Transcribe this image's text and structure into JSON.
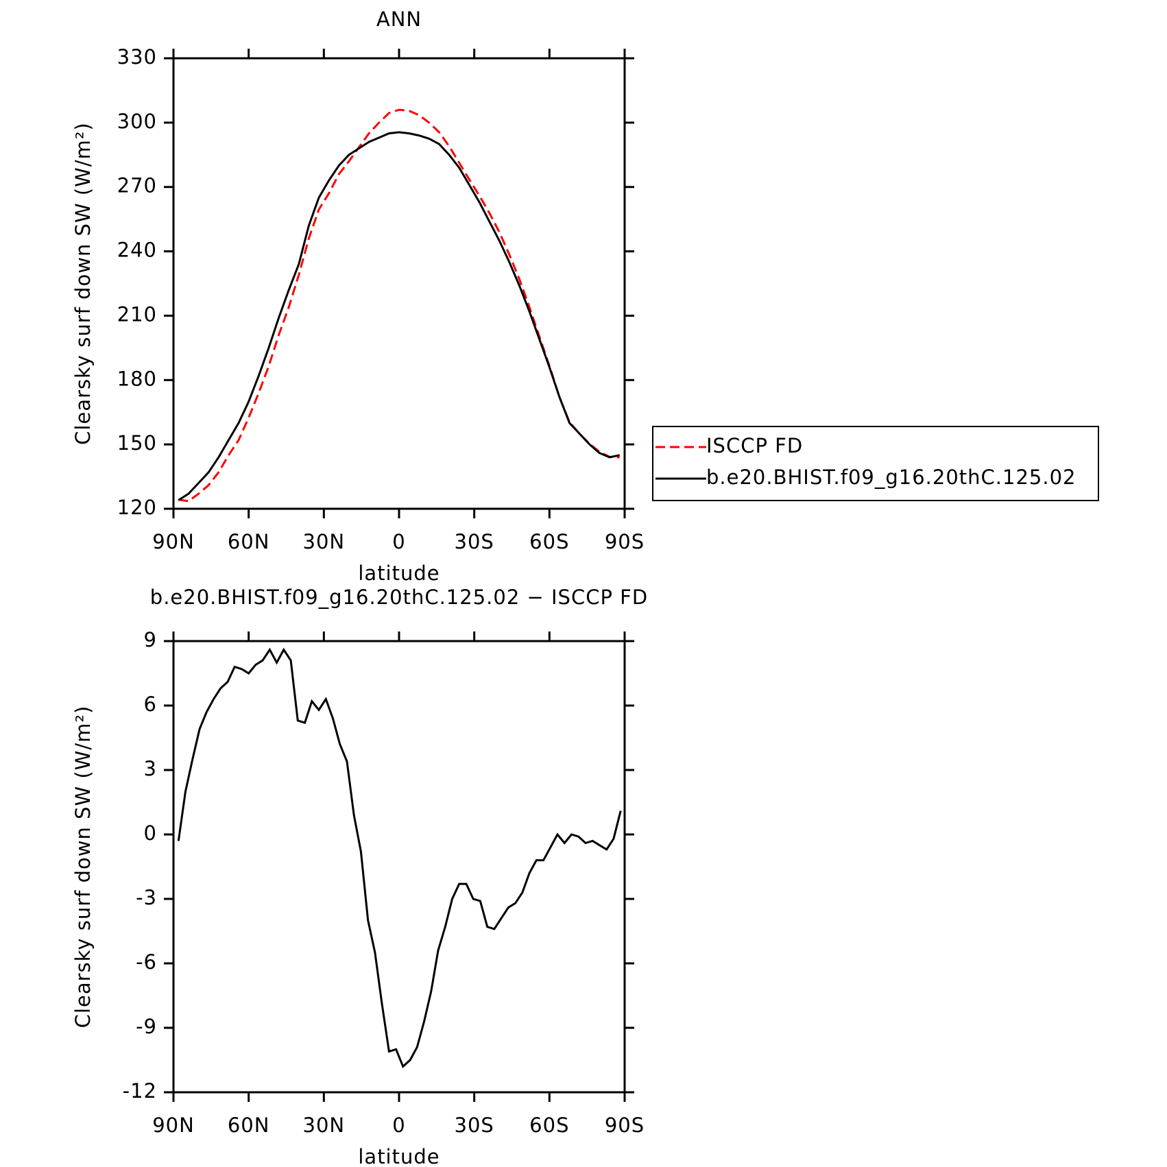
{
  "chart_data": [
    {
      "type": "line",
      "title": "ANN",
      "x_label": "latitude",
      "y_label": "Clearsky surf down SW (W/m²)",
      "xlim": [
        90,
        -90
      ],
      "ylim": [
        120,
        330
      ],
      "xticks": [
        {
          "value": 90,
          "label": "90N"
        },
        {
          "value": 60,
          "label": "60N"
        },
        {
          "value": 30,
          "label": "30N"
        },
        0,
        {
          "value": -30,
          "label": "30S"
        },
        {
          "value": -60,
          "label": "60S"
        },
        {
          "value": -90,
          "label": "90S"
        }
      ],
      "yticks": [
        120,
        150,
        180,
        210,
        240,
        270,
        300,
        330
      ],
      "legend": "right",
      "x": [
        88,
        84,
        80,
        76,
        72,
        68,
        64,
        60,
        56,
        52,
        48,
        44,
        40,
        36,
        32,
        28,
        24,
        20,
        16,
        12,
        8,
        4,
        0,
        -4,
        -8,
        -12,
        -16,
        -20,
        -24,
        -28,
        -32,
        -36,
        -40,
        -44,
        -48,
        -52,
        -56,
        -60,
        -64,
        -68,
        -72,
        -76,
        -80,
        -84,
        -88
      ],
      "series": [
        {
          "name": "ISCCP FD",
          "color": "#ff0000",
          "line_style": "dashed",
          "values": [
            124.3,
            123.5,
            127,
            131,
            137,
            145,
            152,
            162.5,
            174,
            186.5,
            201,
            214,
            229,
            246,
            259.5,
            267,
            276,
            282,
            288.5,
            295,
            300,
            304.5,
            306,
            305.5,
            303.5,
            300,
            295.5,
            289,
            281.3,
            273.5,
            266,
            258,
            249,
            238.5,
            227,
            214,
            200.2,
            186.6,
            172,
            160.3,
            155,
            150.3,
            146.5,
            144.2,
            144
          ]
        },
        {
          "name": "b.e20.BHIST.f09_g16.20thC.125.02",
          "color": "#000000",
          "line_style": "solid",
          "values": [
            124,
            127,
            132,
            137,
            144,
            152,
            160,
            170,
            182,
            195,
            209,
            222,
            234,
            252,
            265,
            273,
            280,
            285,
            288,
            291,
            293,
            295,
            295.5,
            295,
            294,
            292.5,
            290,
            285,
            279,
            271,
            263,
            254,
            245,
            235,
            224,
            212,
            199,
            186,
            172,
            160,
            155,
            150,
            146,
            144,
            145
          ]
        }
      ]
    },
    {
      "type": "line",
      "title": "b.e20.BHIST.f09_g16.20thC.125.02 − ISCCP FD",
      "x_label": "latitude",
      "y_label": "Clearsky surf down SW (W/m²)",
      "xlim": [
        90,
        -90
      ],
      "ylim": [
        -12,
        9
      ],
      "xticks": [
        {
          "value": 90,
          "label": "90N"
        },
        {
          "value": 60,
          "label": "60N"
        },
        {
          "value": 30,
          "label": "30N"
        },
        0,
        {
          "value": -30,
          "label": "30S"
        },
        {
          "value": -60,
          "label": "60S"
        },
        {
          "value": -90,
          "label": "90S"
        }
      ],
      "yticks": [
        -12,
        -9,
        -6,
        -3,
        0,
        3,
        6,
        9
      ],
      "color": "#000000",
      "x": [
        88,
        85.2,
        82.4,
        79.6,
        76.8,
        74,
        71.2,
        68.4,
        65.6,
        62.8,
        60,
        57.2,
        54.4,
        51.6,
        48.8,
        46,
        43.2,
        40.4,
        37.6,
        34.8,
        32,
        29.2,
        26.4,
        23.6,
        20.8,
        18,
        15.2,
        12.4,
        9.6,
        6.8,
        4,
        1.2,
        -1.6,
        -4.4,
        -7.2,
        -10,
        -12.8,
        -15.6,
        -18.4,
        -21.2,
        -24,
        -26.8,
        -29.6,
        -32.4,
        -35.2,
        -38,
        -40.8,
        -43.6,
        -46.4,
        -49.2,
        -52,
        -54.8,
        -57.6,
        -60.4,
        -63.2,
        -66,
        -68.8,
        -71.6,
        -74.4,
        -77.2,
        -80,
        -82.8,
        -85.6,
        -88.4
      ],
      "values": [
        -0.3,
        2,
        3.5,
        4.9,
        5.7,
        6.3,
        6.8,
        7.1,
        7.8,
        7.7,
        7.5,
        7.9,
        8.1,
        8.6,
        8,
        8.6,
        8.1,
        5.3,
        5.2,
        6.2,
        5.8,
        6.3,
        5.4,
        4.2,
        3.4,
        0.9,
        -0.8,
        -4,
        -5.5,
        -7.9,
        -10.1,
        -10,
        -10.8,
        -10.5,
        -9.9,
        -8.7,
        -7.3,
        -5.4,
        -4.3,
        -3,
        -2.3,
        -2.3,
        -3,
        -3.1,
        -4.3,
        -4.4,
        -3.9,
        -3.4,
        -3.2,
        -2.7,
        -1.8,
        -1.2,
        -1.2,
        -0.6,
        0,
        -0.4,
        0,
        -0.1,
        -0.4,
        -0.3,
        -0.5,
        -0.7,
        -0.2,
        1.1
      ]
    }
  ]
}
